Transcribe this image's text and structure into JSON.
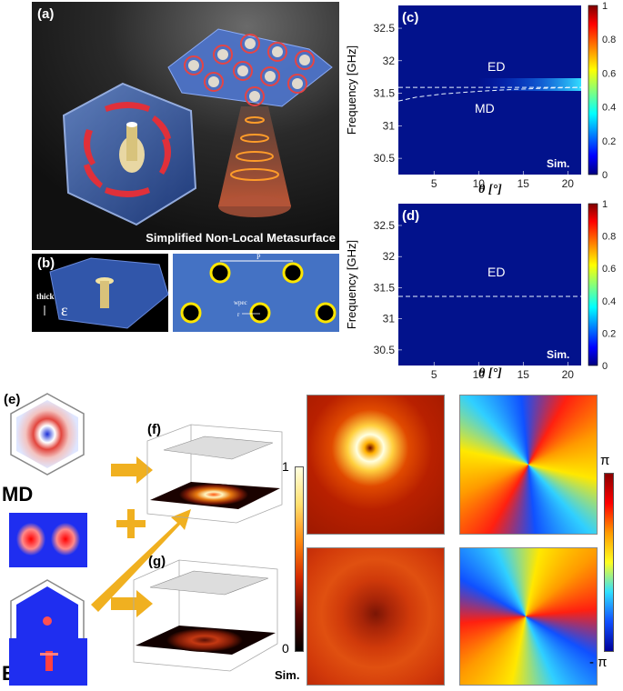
{
  "panels": {
    "a": {
      "label": "(a)",
      "caption": "Simplified Non-Local Metasurface"
    },
    "b": {
      "label": "(b)",
      "thick_label": "thick",
      "eps_label": "ε",
      "p_label": "P",
      "wpec_label": "wpec",
      "r_label": "r"
    },
    "c": {
      "label": "(c)"
    },
    "d": {
      "label": "(d)"
    },
    "e": {
      "label": "(e)",
      "md": "MD",
      "ed": "ED"
    },
    "f": {
      "label": "(f)"
    },
    "g": {
      "label": "(g)"
    },
    "colorbar_amp": {
      "max": "1",
      "min": "0",
      "sim": "Sim."
    },
    "colorbar_phase": {
      "max": "π",
      "min": "- π"
    }
  },
  "chart_data": [
    {
      "type": "heatmap",
      "panel": "(c)",
      "xlabel": "θ [°]",
      "ylabel": "Frequency [GHz]",
      "xticks": [
        "5",
        "10",
        "15",
        "20"
      ],
      "yticks": [
        "32.5",
        "32",
        "31.5",
        "31",
        "30.5"
      ],
      "xlim": [
        1,
        21.5
      ],
      "ylim": [
        30.25,
        32.85
      ],
      "colorbar_ticks": [
        "1",
        "0.8",
        "0.6",
        "0.4",
        "0.2",
        "0"
      ],
      "annotations": [
        "ED",
        "MD",
        "Sim."
      ],
      "modes": [
        {
          "name": "ED",
          "x": [
            1,
            21.5
          ],
          "y": [
            31.59,
            31.59
          ]
        },
        {
          "name": "MD",
          "x": [
            1,
            3,
            6,
            10,
            14,
            18,
            21.5
          ],
          "y": [
            31.38,
            31.44,
            31.49,
            31.53,
            31.56,
            31.58,
            31.59
          ]
        }
      ]
    },
    {
      "type": "heatmap",
      "panel": "(d)",
      "xlabel": "θ [°]",
      "ylabel": "Frequency [GHz]",
      "xticks": [
        "5",
        "10",
        "15",
        "20"
      ],
      "yticks": [
        "32.5",
        "32",
        "31.5",
        "31",
        "30.5"
      ],
      "xlim": [
        1,
        21.5
      ],
      "ylim": [
        30.25,
        32.85
      ],
      "colorbar_ticks": [
        "1",
        "0.8",
        "0.6",
        "0.4",
        "0.2",
        "0"
      ],
      "annotations": [
        "ED",
        "Sim."
      ],
      "modes": [
        {
          "name": "ED",
          "x": [
            1,
            21.5
          ],
          "y": [
            31.36,
            31.36
          ]
        }
      ]
    }
  ]
}
